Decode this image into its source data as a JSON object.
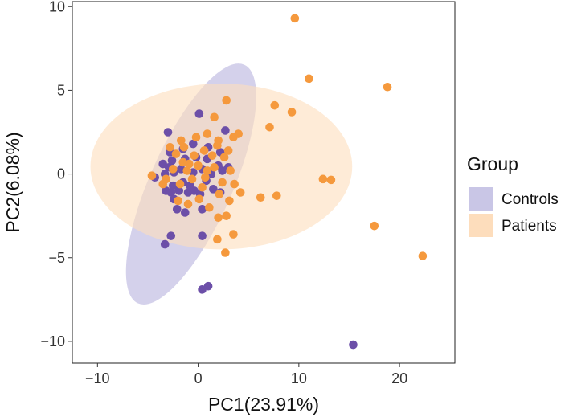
{
  "chart_data": {
    "type": "scatter",
    "title": "",
    "xlabel": "PC1(23.91%)",
    "ylabel": "PC2(6.08%)",
    "xlim": [
      -12.5,
      25.5
    ],
    "ylim": [
      -11.3,
      10.3
    ],
    "xticks": [
      -10,
      0,
      10,
      20
    ],
    "xtick_labels": [
      "−10",
      "0",
      "10",
      "20"
    ],
    "yticks": [
      -10,
      -5,
      0,
      5,
      10
    ],
    "ytick_labels": [
      "−10",
      "−5",
      "0",
      "5",
      "10"
    ],
    "grid": false,
    "legend": {
      "title": "Group",
      "position": "right"
    },
    "series": [
      {
        "name": "Controls",
        "point_color": "#6C4FA8",
        "ellipse_color": "#B7B3DE",
        "ellipse": {
          "center": [
            -0.7,
            -0.6
          ],
          "semi_axes": [
            4.1,
            7.8
          ],
          "angle_deg": 24
        },
        "points": [
          [
            15.4,
            -10.2
          ],
          [
            0.4,
            -6.9
          ],
          [
            1.0,
            -6.7
          ],
          [
            -3.3,
            -4.2
          ],
          [
            -2.7,
            -3.7
          ],
          [
            0.4,
            -3.7
          ],
          [
            -1.3,
            -2.3
          ],
          [
            -2.1,
            -2.1
          ],
          [
            0.4,
            -2.1
          ],
          [
            -3.2,
            -1.0
          ],
          [
            -2.7,
            -1.1
          ],
          [
            -1.9,
            -1.0
          ],
          [
            -1.0,
            -1.1
          ],
          [
            -0.4,
            -1.0
          ],
          [
            0.2,
            -1.2
          ],
          [
            2.2,
            -1.1
          ],
          [
            -2.5,
            -0.7
          ],
          [
            -1.5,
            -0.5
          ],
          [
            -0.8,
            -0.7
          ],
          [
            0.8,
            -0.4
          ],
          [
            1.5,
            -0.9
          ],
          [
            -4.3,
            -0.2
          ],
          [
            -3.3,
            0.0
          ],
          [
            -2.4,
            0.1
          ],
          [
            -1.7,
            0.3
          ],
          [
            -0.5,
            0.1
          ],
          [
            0.4,
            0.3
          ],
          [
            1.3,
            0.0
          ],
          [
            2.4,
            0.2
          ],
          [
            -3.5,
            0.6
          ],
          [
            -2.6,
            0.8
          ],
          [
            -1.3,
            0.9
          ],
          [
            -0.2,
            1.0
          ],
          [
            0.9,
            0.9
          ],
          [
            2.0,
            0.5
          ],
          [
            3.0,
            0.4
          ],
          [
            -2.8,
            1.3
          ],
          [
            -1.5,
            1.5
          ],
          [
            -0.5,
            1.8
          ],
          [
            1.0,
            1.6
          ],
          [
            2.2,
            1.3
          ],
          [
            -3.0,
            2.5
          ],
          [
            0.1,
            3.6
          ],
          [
            2.7,
            2.6
          ],
          [
            -2.9,
            0.4
          ],
          [
            -2.4,
            -1.5
          ]
        ]
      },
      {
        "name": "Patients",
        "point_color": "#F5993D",
        "ellipse_color": "#FDDDBC",
        "ellipse": {
          "center": [
            2.3,
            0.45
          ],
          "semi_axes": [
            13.0,
            4.95
          ],
          "angle_deg": 0
        },
        "points": [
          [
            9.6,
            9.3
          ],
          [
            18.8,
            5.2
          ],
          [
            11.0,
            5.7
          ],
          [
            2.8,
            4.4
          ],
          [
            7.6,
            4.1
          ],
          [
            9.3,
            3.7
          ],
          [
            7.1,
            2.8
          ],
          [
            1.6,
            3.4
          ],
          [
            0.9,
            2.4
          ],
          [
            2.0,
            2.0
          ],
          [
            3.5,
            2.2
          ],
          [
            4.0,
            2.4
          ],
          [
            12.4,
            -0.3
          ],
          [
            13.2,
            -0.35
          ],
          [
            7.8,
            -1.3
          ],
          [
            6.2,
            -1.4
          ],
          [
            4.2,
            -1.1
          ],
          [
            17.5,
            -3.1
          ],
          [
            22.3,
            -4.9
          ],
          [
            2.7,
            -4.7
          ],
          [
            1.9,
            -3.9
          ],
          [
            3.5,
            -3.6
          ],
          [
            2.8,
            -2.5
          ],
          [
            3.1,
            -1.6
          ],
          [
            -4.6,
            -0.1
          ],
          [
            -3.5,
            -0.6
          ],
          [
            -2.5,
            0.3
          ],
          [
            -1.8,
            -0.6
          ],
          [
            -1.1,
            0.2
          ],
          [
            -0.6,
            -0.3
          ],
          [
            0.0,
            0.5
          ],
          [
            0.7,
            -0.2
          ],
          [
            1.6,
            0.4
          ],
          [
            2.4,
            -0.5
          ],
          [
            3.2,
            0.2
          ],
          [
            -2.2,
            1.2
          ],
          [
            -1.4,
            1.6
          ],
          [
            -0.4,
            1.1
          ],
          [
            0.6,
            1.4
          ],
          [
            1.4,
            1.1
          ],
          [
            2.6,
            1.0
          ],
          [
            -2.0,
            -1.6
          ],
          [
            -1.0,
            -1.8
          ],
          [
            0.1,
            -1.5
          ],
          [
            1.1,
            -2.0
          ],
          [
            2.0,
            -2.6
          ],
          [
            -0.2,
            2.2
          ],
          [
            -1.7,
            2.0
          ],
          [
            -0.9,
            0.6
          ],
          [
            0.4,
            -0.8
          ],
          [
            1.9,
            1.7
          ],
          [
            3.0,
            1.4
          ],
          [
            -3.2,
            -0.3
          ],
          [
            -2.8,
            1.6
          ],
          [
            -1.5,
            0.7
          ],
          [
            0.9,
            0.2
          ],
          [
            2.1,
            -1.2
          ],
          [
            3.6,
            -0.6
          ]
        ]
      }
    ]
  }
}
